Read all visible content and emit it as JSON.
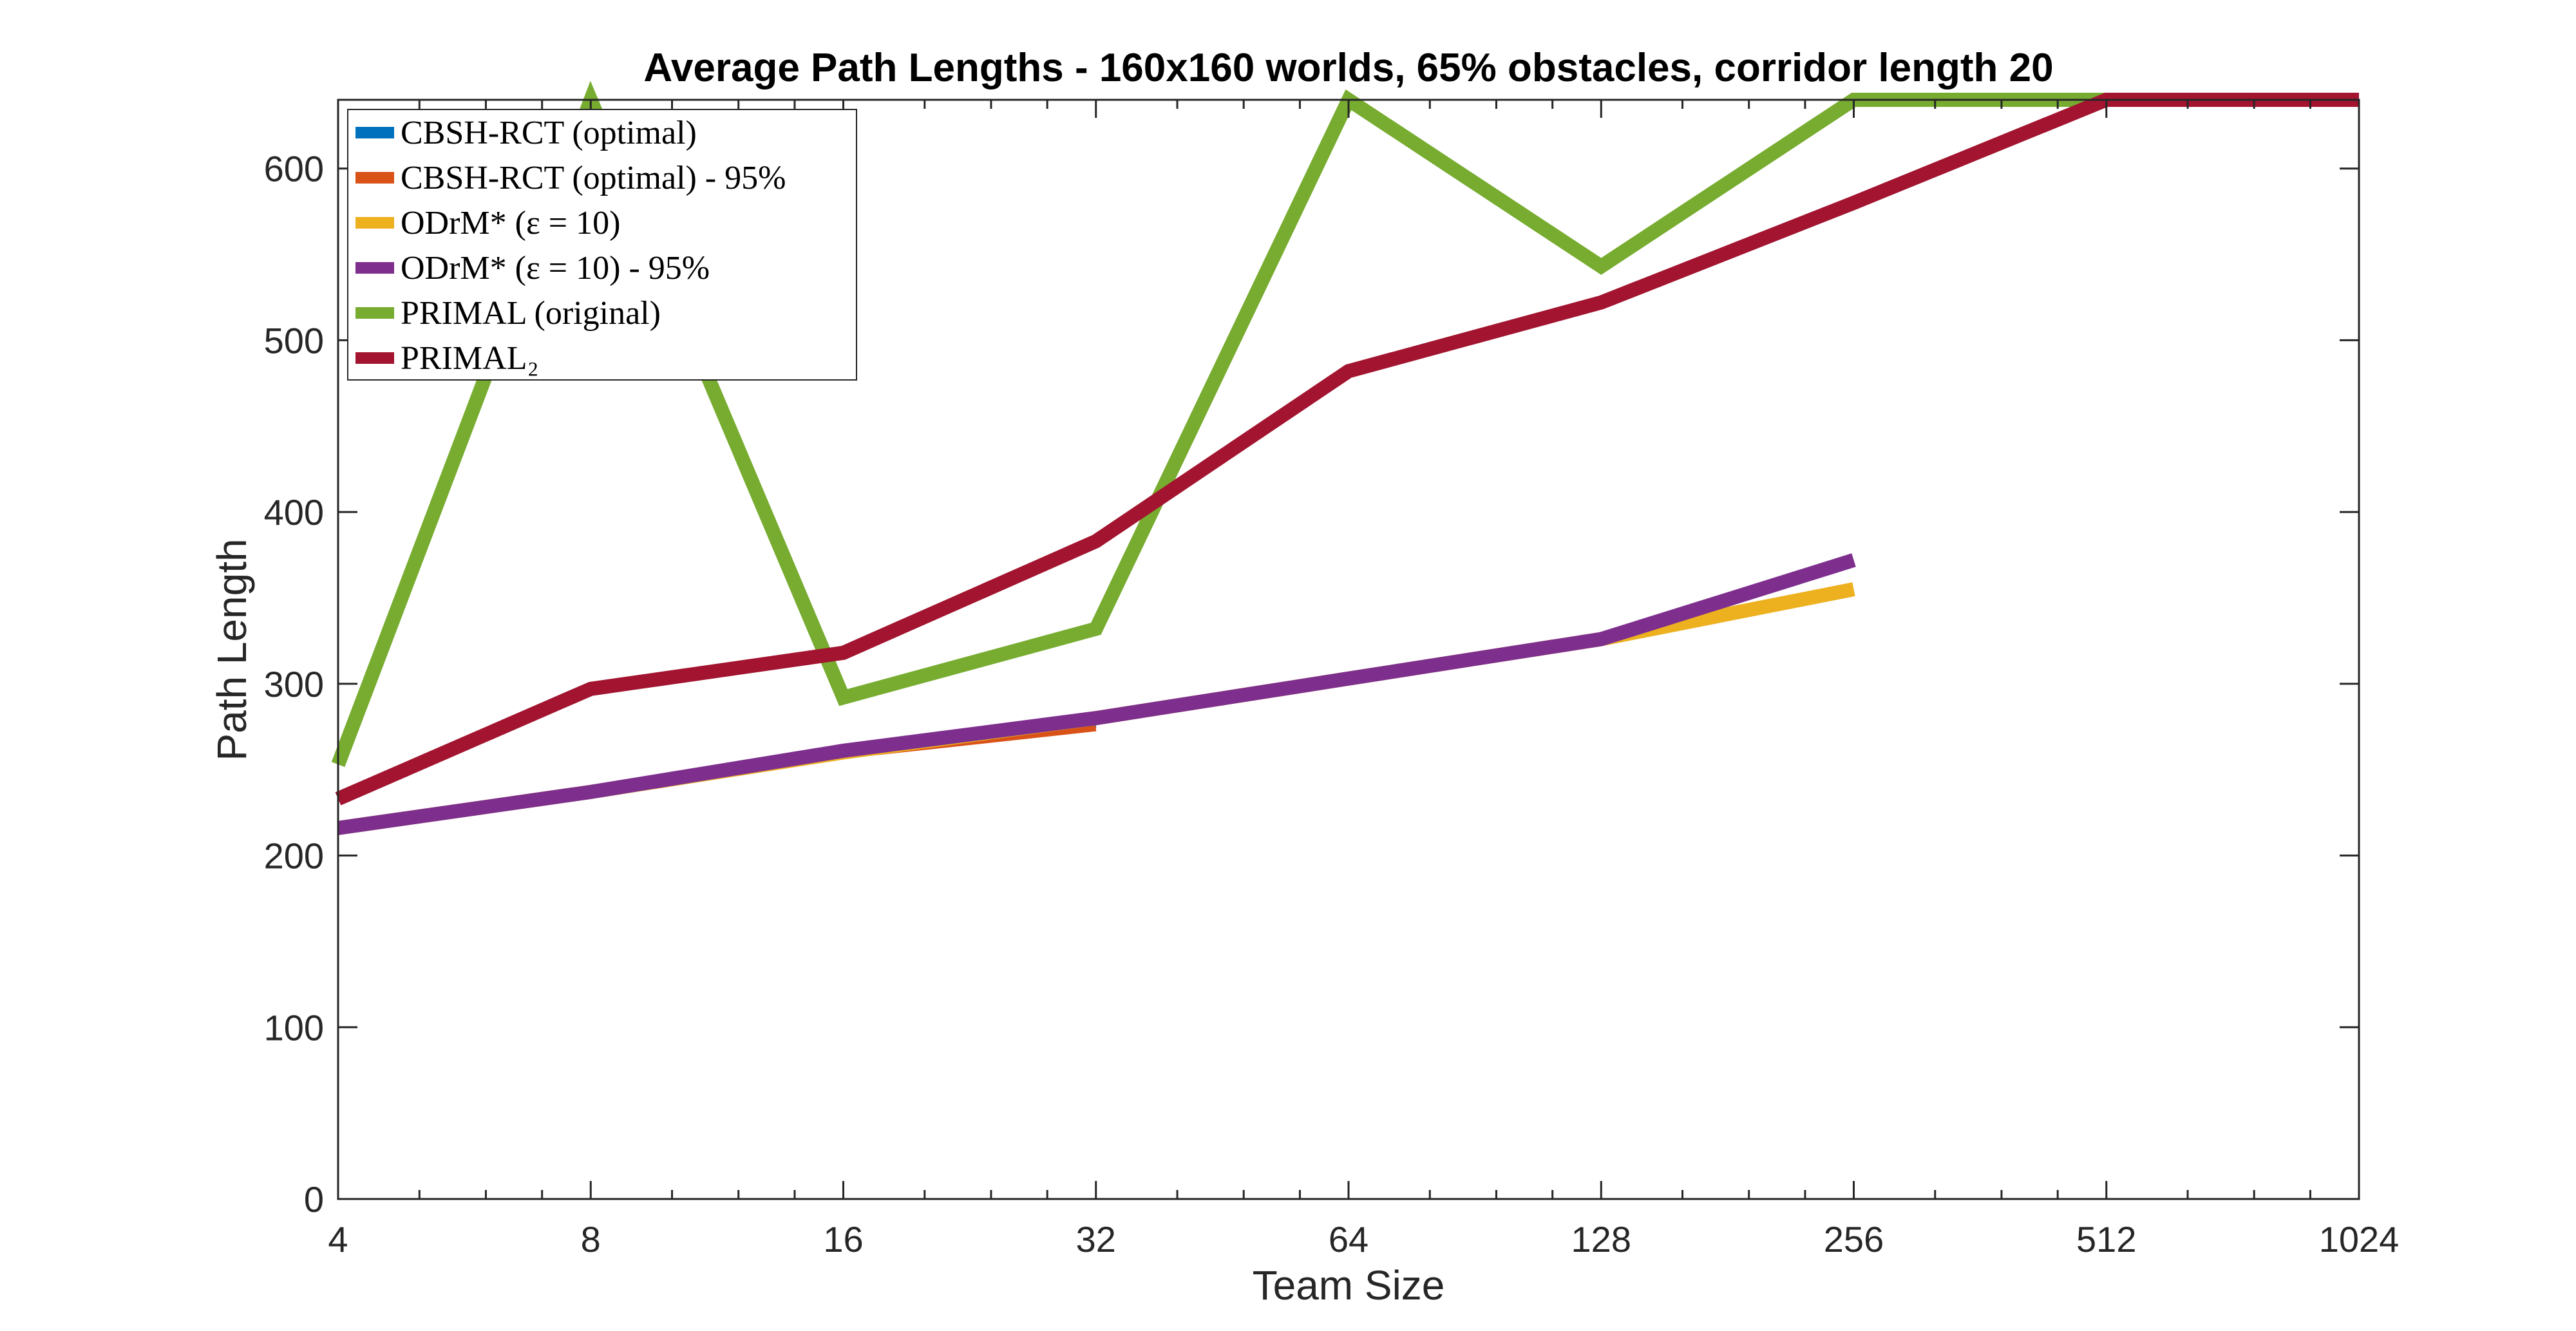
{
  "chart_data": {
    "type": "line",
    "title": "Average Path Lengths - 160x160 worlds, 65% obstacles, corridor length 20",
    "xlabel": "Team Size",
    "ylabel": "Path Length",
    "xscale": "log2",
    "xlim": [
      4,
      1024
    ],
    "ylim": [
      0,
      640
    ],
    "xticks": [
      4,
      8,
      16,
      32,
      64,
      128,
      256,
      512,
      1024
    ],
    "xtick_labels": [
      "4",
      "8",
      "16",
      "32",
      "64",
      "128",
      "256",
      "512",
      "1024"
    ],
    "yticks": [
      0,
      100,
      200,
      300,
      400,
      500,
      600
    ],
    "ytick_labels": [
      "0",
      "100",
      "200",
      "300",
      "400",
      "500",
      "600"
    ],
    "grid": false,
    "legend_position": "top-left",
    "series": [
      {
        "name": "CBSH-RCT (optimal)",
        "color": "#0072BD",
        "x": [
          4,
          8,
          16,
          32
        ],
        "y": [
          216,
          236,
          258,
          276
        ]
      },
      {
        "name": "CBSH-RCT (optimal) - 95%",
        "color": "#D95319",
        "x": [
          4,
          8,
          16,
          32
        ],
        "y": [
          216,
          235,
          258,
          274
        ]
      },
      {
        "name": "ODrM* (ε = 10)",
        "color": "#EDB120",
        "x": [
          4,
          8,
          16,
          32,
          64,
          128,
          256
        ],
        "y": [
          216,
          237,
          260,
          280,
          303,
          326,
          355
        ]
      },
      {
        "name": "ODrM* (ε = 10) - 95%",
        "color": "#7E2F8E",
        "x": [
          4,
          8,
          16,
          32,
          64,
          128,
          256
        ],
        "y": [
          216,
          237,
          261,
          280,
          303,
          326,
          372
        ]
      },
      {
        "name": "PRIMAL (original)",
        "color": "#77AC30",
        "x": [
          4,
          8,
          16,
          32,
          64,
          128,
          256,
          512,
          1024
        ],
        "y": [
          253,
          640,
          292,
          332,
          640,
          543,
          640,
          640,
          640
        ]
      },
      {
        "name": "PRIMAL₂",
        "color": "#A2142F",
        "x": [
          4,
          8,
          16,
          32,
          64,
          128,
          256,
          512,
          1024
        ],
        "y": [
          233,
          297,
          318,
          383,
          482,
          522,
          580,
          640,
          640
        ]
      }
    ]
  }
}
